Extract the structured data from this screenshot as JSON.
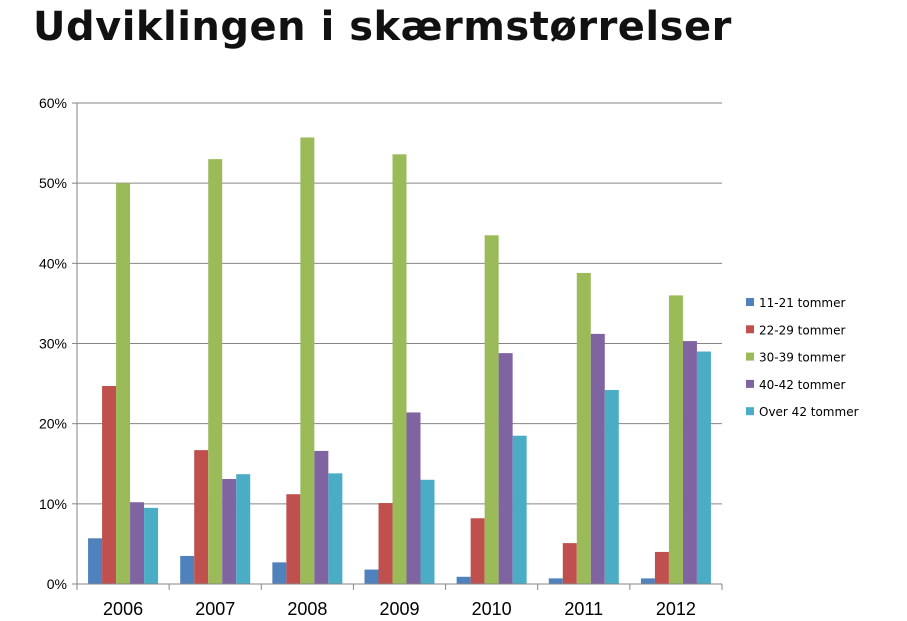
{
  "chart_data": {
    "type": "bar",
    "title": "Udviklingen i skærmstørrelser",
    "xlabel": "",
    "ylabel": "",
    "ylim": [
      0,
      60
    ],
    "yticks": [
      "0%",
      "10%",
      "20%",
      "30%",
      "40%",
      "50%",
      "60%"
    ],
    "grid": true,
    "legend": "right",
    "categories": [
      "2006",
      "2007",
      "2008",
      "2009",
      "2010",
      "2011",
      "2012"
    ],
    "series": [
      {
        "name": "11-21 tommer",
        "color": "#4f81bd",
        "values": [
          5.7,
          3.5,
          2.7,
          1.8,
          0.9,
          0.7,
          0.7
        ]
      },
      {
        "name": "22-29 tommer",
        "color": "#c0504d",
        "values": [
          24.7,
          16.7,
          11.2,
          10.1,
          8.2,
          5.1,
          4.0
        ]
      },
      {
        "name": "30-39 tommer",
        "color": "#9bbb59",
        "values": [
          50.0,
          53.0,
          55.7,
          53.6,
          43.5,
          38.8,
          36.0
        ]
      },
      {
        "name": "40-42 tommer",
        "color": "#8064a2",
        "values": [
          10.2,
          13.1,
          16.6,
          21.4,
          28.8,
          31.2,
          30.3
        ]
      },
      {
        "name": "Over 42 tommer",
        "color": "#4bacc6",
        "values": [
          9.5,
          13.7,
          13.8,
          13.0,
          18.5,
          24.2,
          29.0
        ]
      }
    ]
  }
}
